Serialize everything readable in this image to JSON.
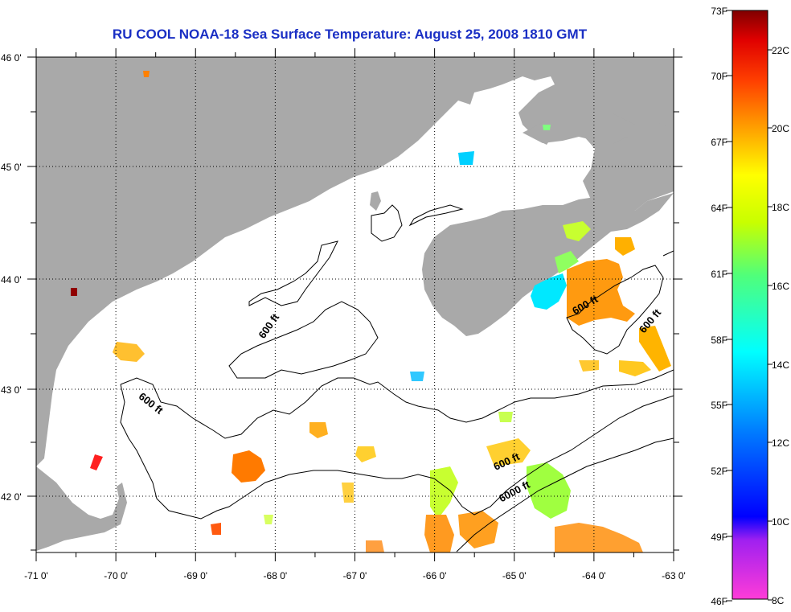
{
  "title": "RU COOL  NOAA-18  Sea Surface Temperature:  August 25, 2008 1810 GMT",
  "map": {
    "lon_labels": [
      "-71 0'",
      "-70 0'",
      "-69 0'",
      "-68 0'",
      "-67 0'",
      "-66 0'",
      "-65 0'",
      "-64 0'",
      "-63 0'"
    ],
    "lat_labels": [
      "46 0'",
      "45 0'",
      "44 0'",
      "43 0'",
      "42 0'"
    ],
    "contour_labels": [
      "600 ft",
      "600 ft",
      "600 ft",
      "600 ft",
      "600 ft",
      "6000 ft"
    ],
    "land_color": "#a9a9a9",
    "water_color": "#ffffff"
  },
  "colorbar": {
    "fahrenheit_labels": [
      "73F",
      "70F",
      "67F",
      "64F",
      "61F",
      "58F",
      "55F",
      "52F",
      "49F",
      "46F"
    ],
    "celsius_labels": [
      "22C",
      "20C",
      "18C",
      "16C",
      "14C",
      "12C",
      "10C",
      "8C"
    ],
    "colors": [
      "#8b0000",
      "#ff0000",
      "#ff8000",
      "#ffff00",
      "#7fff00",
      "#00ffff",
      "#0080ff",
      "#0000ff",
      "#8000ff",
      "#ff00ff"
    ]
  }
}
